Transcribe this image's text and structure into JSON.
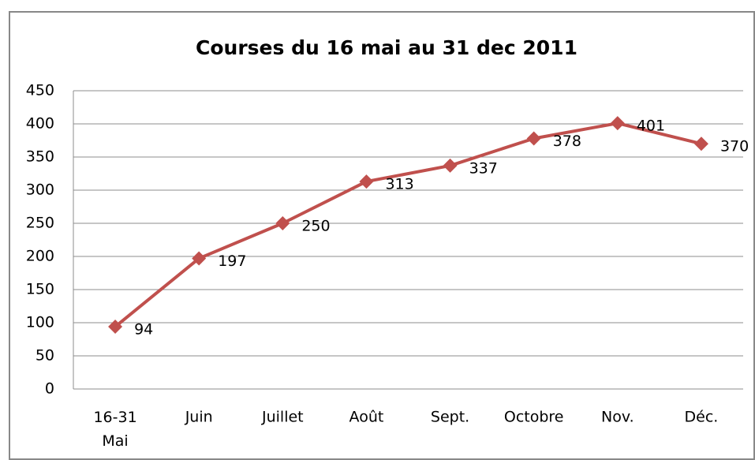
{
  "chart_data": {
    "type": "line",
    "title": "Courses du 16 mai au 31 dec 2011",
    "categories": [
      "16-31 Mai",
      "Juin",
      "Juillet",
      "Août",
      "Sept.",
      "Octobre",
      "Nov.",
      "Déc."
    ],
    "series": [
      {
        "name": "Courses",
        "color": "#c0504d",
        "values": [
          94,
          197,
          250,
          313,
          337,
          378,
          401,
          370
        ]
      }
    ],
    "ylim": [
      0,
      450
    ],
    "yticks": [
      0,
      50,
      100,
      150,
      200,
      250,
      300,
      350,
      400,
      450
    ],
    "grid": true
  }
}
